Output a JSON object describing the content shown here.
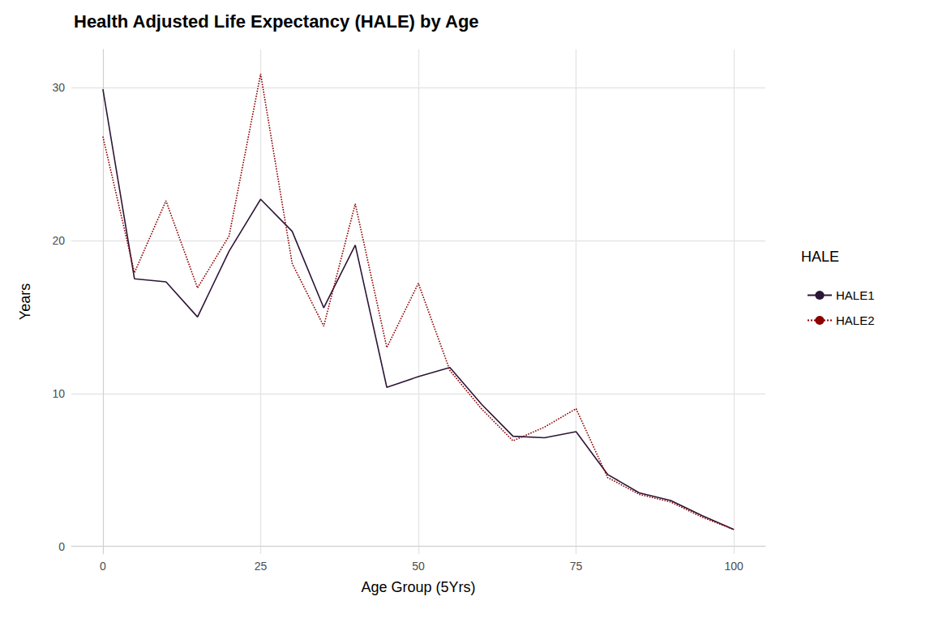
{
  "chart_data": {
    "type": "line",
    "title": "Health Adjusted Life Expectancy (HALE) by Age",
    "x_label": "Age Group (5Yrs)",
    "y_label": "Years",
    "legend_title": "HALE",
    "x": [
      0,
      5,
      10,
      15,
      20,
      25,
      30,
      35,
      40,
      45,
      50,
      55,
      60,
      65,
      70,
      75,
      80,
      85,
      90,
      95,
      100
    ],
    "series": [
      {
        "name": "HALE1",
        "color": "#2d1537",
        "line_style": "solid",
        "values": [
          29.9,
          17.5,
          17.3,
          15.0,
          19.3,
          22.7,
          20.6,
          15.6,
          19.7,
          10.4,
          11.1,
          11.7,
          9.3,
          7.2,
          7.1,
          7.5,
          4.7,
          3.5,
          3.0,
          2.0,
          1.1
        ]
      },
      {
        "name": "HALE2",
        "color": "#8b0000",
        "line_style": "dotted",
        "values": [
          26.8,
          17.9,
          22.6,
          16.9,
          20.3,
          30.9,
          18.5,
          14.4,
          22.4,
          13.0,
          17.2,
          11.5,
          9.0,
          6.9,
          7.8,
          9.0,
          4.5,
          3.4,
          2.9,
          1.9,
          1.1
        ]
      }
    ],
    "xlim": [
      -5,
      105
    ],
    "xticks": [
      0,
      25,
      50,
      75,
      100
    ],
    "ylim": [
      -0.5,
      32.5
    ],
    "yticks": [
      0,
      10,
      20,
      30
    ],
    "grid": true,
    "legend": "right"
  }
}
